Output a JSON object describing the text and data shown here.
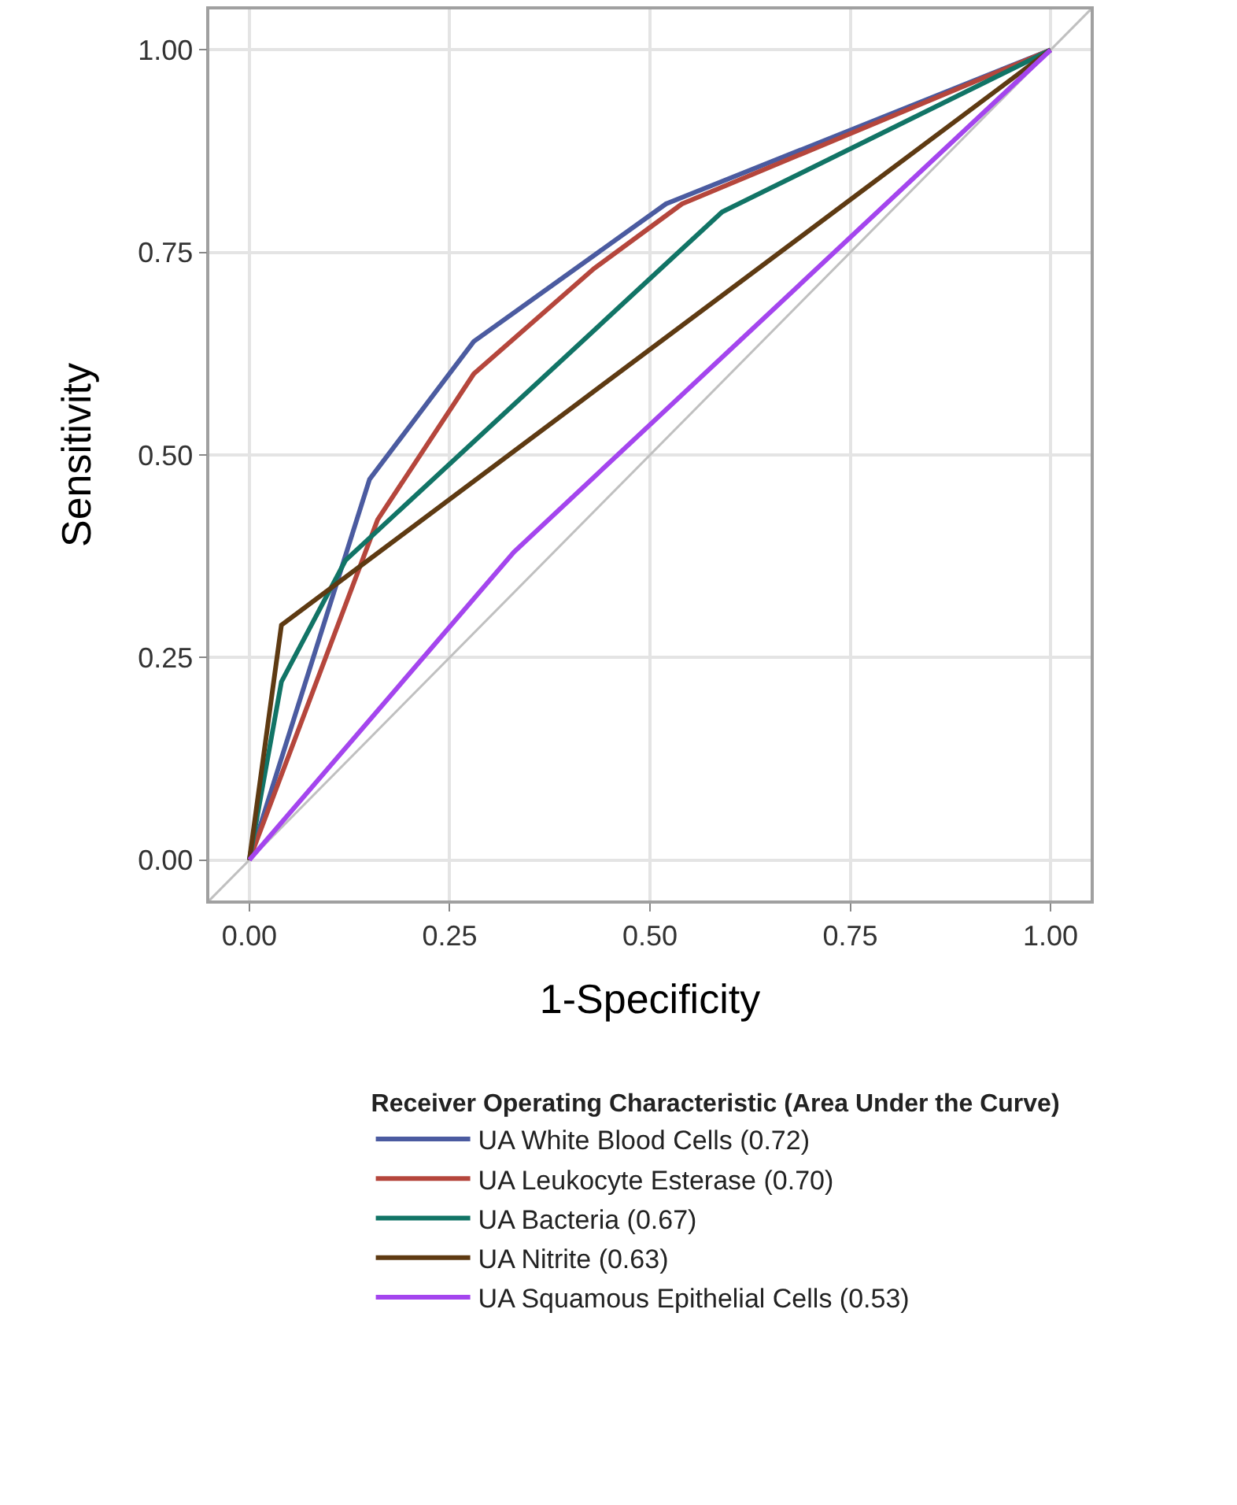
{
  "chart_data": {
    "type": "line",
    "xlabel": "1-Specificity",
    "ylabel": "Sensitivity",
    "legend_title": "Receiver Operating Characteristic (Area Under the Curve)",
    "legend": "bottom",
    "grid": true,
    "marker": "none",
    "line_style": "solid",
    "xlim": [
      -0.05,
      1.05
    ],
    "ylim": [
      -0.05,
      1.05
    ],
    "xticks": [
      {
        "value": 0,
        "label": "0.00"
      },
      {
        "value": 0.25,
        "label": "0.25"
      },
      {
        "value": 0.5,
        "label": "0.50"
      },
      {
        "value": 0.75,
        "label": "0.75"
      },
      {
        "value": 1,
        "label": "1.00"
      }
    ],
    "yticks": [
      {
        "value": 0,
        "label": "0.00"
      },
      {
        "value": 0.25,
        "label": "0.25"
      },
      {
        "value": 0.5,
        "label": "0.50"
      },
      {
        "value": 0.75,
        "label": "0.75"
      },
      {
        "value": 1,
        "label": "1.00"
      }
    ],
    "series": [
      {
        "color": "#c0c0c0",
        "x": [
          -0.05,
          1.05
        ],
        "values": [
          -0.05,
          1.05
        ]
      },
      {
        "name": "UA White Blood Cells (0.72)",
        "color": "#4b5ba0",
        "x": [
          0,
          0.15,
          0.28,
          0.52,
          1
        ],
        "values": [
          0,
          0.47,
          0.64,
          0.81,
          1
        ]
      },
      {
        "name": "UA Leukocyte Esterase (0.70)",
        "color": "#b5463c",
        "x": [
          0,
          0.16,
          0.28,
          0.43,
          0.54,
          1
        ],
        "values": [
          0,
          0.42,
          0.6,
          0.73,
          0.81,
          1
        ]
      },
      {
        "name": "UA Bacteria (0.67)",
        "color": "#117466",
        "x": [
          0,
          0.04,
          0.12,
          0.59,
          1
        ],
        "values": [
          0,
          0.22,
          0.37,
          0.8,
          1
        ]
      },
      {
        "name": "UA Nitrite (0.63)",
        "color": "#5e3a12",
        "x": [
          0,
          0.04,
          1
        ],
        "values": [
          0,
          0.29,
          1
        ]
      },
      {
        "name": "UA Squamous Epithelial Cells (0.53)",
        "color": "#a445ee",
        "x": [
          0,
          0.33,
          1
        ],
        "values": [
          0,
          0.38,
          1
        ]
      }
    ]
  }
}
